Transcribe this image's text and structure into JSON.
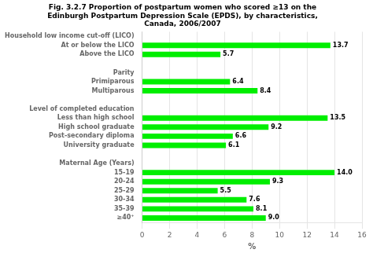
{
  "chart_data": {
    "type": "bar",
    "orientation": "horizontal",
    "title": "Fig. 3.2.7 Proportion of postpartum women who scored ≥13 on the\nEdinburgh Postpartum Depression Scale (EPDS), by characteristics,\nCanada, 2006/2007",
    "xlabel": "%",
    "color": "#00EE00",
    "categories": [
      "Household low income cut-off (LICO)",
      "At or below the LICO",
      "Above the LICO",
      null,
      "Parity",
      "Primiparous",
      "Multiparous",
      null,
      "Level of completed education",
      "Less than high school",
      "High school graduate",
      "Post-secondary diploma",
      "University graduate",
      null,
      "Maternal Age (Years)",
      "15-19",
      "20-24",
      "25-29",
      "30-34",
      "35-39",
      "≥40⁺"
    ],
    "values": [
      null,
      13.7,
      5.7,
      null,
      null,
      6.4,
      8.4,
      null,
      null,
      13.5,
      9.2,
      6.6,
      6.1,
      null,
      null,
      14.0,
      9.3,
      5.5,
      7.6,
      8.1,
      9.0
    ],
    "value_labels": [
      null,
      "13.7",
      "5.7",
      null,
      null,
      "6.4",
      "8.4",
      null,
      null,
      "13.5",
      "9.2",
      "6.6",
      "6.1",
      null,
      null,
      "14.0",
      "9.3",
      "5.5",
      "7.6",
      "8.1",
      "9.0"
    ],
    "data_labels": true,
    "xlim": [
      0,
      16
    ],
    "xticks": [
      0,
      2,
      4,
      6,
      8,
      10,
      12,
      14,
      16
    ],
    "grid": true
  }
}
